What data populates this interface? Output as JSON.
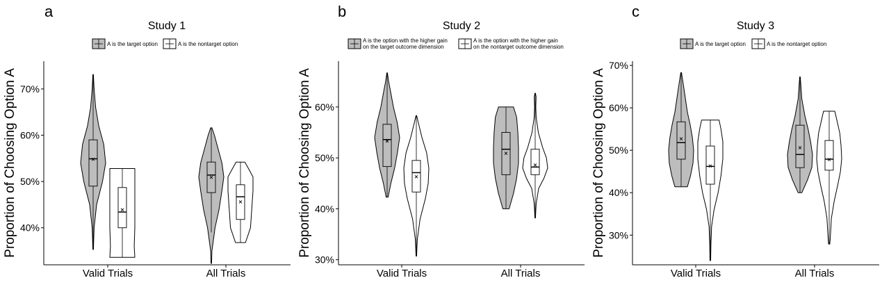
{
  "figure": {
    "colors": {
      "target_fill": "#bdbdbd",
      "nontarget_fill": "#ffffff",
      "stroke": "#000000"
    }
  },
  "chart_data": [
    {
      "type": "violin",
      "panel_letter": "a",
      "title": "Study 1",
      "ylabel": "Proportion of Choosing Option A",
      "categories": [
        "Valid Trials",
        "All Trials"
      ],
      "y_ticks": [
        "40%",
        "50%",
        "60%",
        "70%"
      ],
      "y_tick_values": [
        40,
        50,
        60,
        70
      ],
      "ylim": [
        32,
        76
      ],
      "grid": false,
      "legend_placement": "top",
      "series": [
        {
          "name": "A is the target option",
          "legend_lines": [
            "A is the target option"
          ],
          "fill": "#bdbdbd",
          "groups": [
            {
              "category": "Valid Trials",
              "min": 35.3,
              "max": 73.1,
              "q1": 49.0,
              "median": 54.9,
              "q3": 59.0,
              "mean": 54.8,
              "lower_whisker": 35.3,
              "upper_whisker": 73.1,
              "density": [
                [
                  35.3,
                  0.02
                ],
                [
                  40,
                  0.08
                ],
                [
                  45,
                  0.28
                ],
                [
                  50,
                  0.75
                ],
                [
                  54,
                  1.0
                ],
                [
                  58,
                  0.85
                ],
                [
                  62,
                  0.45
                ],
                [
                  66,
                  0.2
                ],
                [
                  70,
                  0.08
                ],
                [
                  73.1,
                  0.02
                ]
              ]
            },
            {
              "category": "All Trials",
              "min": 32.3,
              "max": 61.6,
              "q1": 47.6,
              "median": 51.4,
              "q3": 54.2,
              "mean": 50.9,
              "lower_whisker": 39.0,
              "upper_whisker": 61.6,
              "density": [
                [
                  32.3,
                  0.02
                ],
                [
                  35,
                  0.05
                ],
                [
                  40,
                  0.3
                ],
                [
                  44,
                  0.62
                ],
                [
                  48,
                  0.85
                ],
                [
                  51,
                  1.0
                ],
                [
                  54,
                  0.85
                ],
                [
                  57,
                  0.55
                ],
                [
                  60,
                  0.25
                ],
                [
                  61.6,
                  0.05
                ]
              ]
            }
          ]
        },
        {
          "name": "A is the nontarget option",
          "legend_lines": [
            "A is the nontarget option"
          ],
          "fill": "#ffffff",
          "groups": [
            {
              "category": "Valid Trials",
              "min": 33.6,
              "max": 52.8,
              "q1": 40.0,
              "median": 43.4,
              "q3": 48.7,
              "mean": 43.9,
              "lower_whisker": 33.6,
              "upper_whisker": 52.8,
              "density": [
                [
                  33.6,
                  1.0
                ],
                [
                  36,
                  0.95
                ],
                [
                  40,
                  1.0
                ],
                [
                  44,
                  1.0
                ],
                [
                  48,
                  1.0
                ],
                [
                  51,
                  1.0
                ],
                [
                  52.8,
                  1.0
                ]
              ]
            },
            {
              "category": "All Trials",
              "min": 36.8,
              "max": 54.2,
              "q1": 41.8,
              "median": 46.7,
              "q3": 49.3,
              "mean": 45.6,
              "lower_whisker": 36.8,
              "upper_whisker": 54.2,
              "density": [
                [
                  36.8,
                  0.4
                ],
                [
                  40,
                  0.8
                ],
                [
                  44,
                  0.9
                ],
                [
                  48,
                  1.0
                ],
                [
                  51,
                  1.0
                ],
                [
                  53,
                  0.6
                ],
                [
                  54.2,
                  0.35
                ]
              ]
            }
          ]
        }
      ]
    },
    {
      "type": "violin",
      "panel_letter": "b",
      "title": "Study 2",
      "ylabel": "Proportion of Choosing Option A",
      "categories": [
        "Valid Trials",
        "All Trials"
      ],
      "y_ticks": [
        "30%",
        "40%",
        "50%",
        "60%"
      ],
      "y_tick_values": [
        30,
        40,
        50,
        60
      ],
      "ylim": [
        29,
        69
      ],
      "grid": false,
      "legend_placement": "top",
      "series": [
        {
          "name": "A is the option with the higher gain on the target outcome dimension",
          "legend_lines": [
            "A is the option with the higher gain",
            "on the target outcome dimension"
          ],
          "fill": "#bdbdbd",
          "groups": [
            {
              "category": "Valid Trials",
              "min": 42.3,
              "max": 66.7,
              "q1": 48.3,
              "median": 53.6,
              "q3": 56.6,
              "mean": 53.3,
              "lower_whisker": 42.3,
              "upper_whisker": 66.7,
              "density": [
                [
                  42.3,
                  0.08
                ],
                [
                  45,
                  0.3
                ],
                [
                  48,
                  0.6
                ],
                [
                  51,
                  0.82
                ],
                [
                  54,
                  1.0
                ],
                [
                  57,
                  0.8
                ],
                [
                  60,
                  0.5
                ],
                [
                  63,
                  0.28
                ],
                [
                  65,
                  0.12
                ],
                [
                  66.7,
                  0.02
                ]
              ]
            },
            {
              "category": "All Trials",
              "min": 40.0,
              "max": 60.0,
              "q1": 46.7,
              "median": 51.7,
              "q3": 55.0,
              "mean": 50.9,
              "lower_whisker": 40.0,
              "upper_whisker": 60.0,
              "density": [
                [
                  40,
                  0.25
                ],
                [
                  43,
                  0.6
                ],
                [
                  46,
                  0.85
                ],
                [
                  49,
                  1.0
                ],
                [
                  52,
                  1.0
                ],
                [
                  55,
                  0.95
                ],
                [
                  58,
                  0.85
                ],
                [
                  60,
                  0.6
                ]
              ]
            }
          ]
        },
        {
          "name": "A is the option with the higher gain on the nontarget outcome dimension",
          "legend_lines": [
            "A is the option with the higher gain",
            "on the nontarget outcome dimension"
          ],
          "fill": "#ffffff",
          "groups": [
            {
              "category": "Valid Trials",
              "min": 30.7,
              "max": 58.3,
              "q1": 43.3,
              "median": 47.1,
              "q3": 49.5,
              "mean": 46.3,
              "lower_whisker": 30.7,
              "upper_whisker": 58.3,
              "density": [
                [
                  30.7,
                  0.02
                ],
                [
                  34,
                  0.08
                ],
                [
                  38,
                  0.3
                ],
                [
                  42,
                  0.72
                ],
                [
                  45,
                  0.95
                ],
                [
                  48,
                  1.0
                ],
                [
                  51,
                  0.82
                ],
                [
                  54,
                  0.45
                ],
                [
                  57,
                  0.15
                ],
                [
                  58.3,
                  0.03
                ]
              ]
            },
            {
              "category": "All Trials",
              "min": 38.2,
              "max": 62.7,
              "q1": 46.7,
              "median": 48.2,
              "q3": 51.7,
              "mean": 48.6,
              "lower_whisker": 38.2,
              "upper_whisker": 62.7,
              "density": [
                [
                  38.2,
                  0.02
                ],
                [
                  41,
                  0.08
                ],
                [
                  44,
                  0.28
                ],
                [
                  46,
                  0.7
                ],
                [
                  48,
                  1.0
                ],
                [
                  50,
                  0.9
                ],
                [
                  52,
                  0.6
                ],
                [
                  55,
                  0.25
                ],
                [
                  58,
                  0.08
                ],
                [
                  60,
                  0.05
                ],
                [
                  62,
                  0.07
                ],
                [
                  62.7,
                  0.02
                ]
              ]
            }
          ]
        }
      ]
    },
    {
      "type": "violin",
      "panel_letter": "c",
      "title": "Study 3",
      "ylabel": "Proportion of Choosing Option A",
      "categories": [
        "Valid Trials",
        "All Trials"
      ],
      "y_ticks": [
        "30%",
        "40%",
        "50%",
        "60%",
        "70%"
      ],
      "y_tick_values": [
        30,
        40,
        50,
        60,
        70
      ],
      "ylim": [
        23,
        71
      ],
      "grid": false,
      "legend_placement": "top",
      "series": [
        {
          "name": "A is the target option",
          "legend_lines": [
            "A is the target option"
          ],
          "fill": "#bdbdbd",
          "groups": [
            {
              "category": "Valid Trials",
              "min": 41.4,
              "max": 68.3,
              "q1": 47.9,
              "median": 51.8,
              "q3": 56.7,
              "mean": 52.7,
              "lower_whisker": 41.4,
              "upper_whisker": 68.3,
              "density": [
                [
                  41.4,
                  0.5
                ],
                [
                  44,
                  0.75
                ],
                [
                  47,
                  0.95
                ],
                [
                  50,
                  1.0
                ],
                [
                  53,
                  0.9
                ],
                [
                  56,
                  0.72
                ],
                [
                  59,
                  0.5
                ],
                [
                  62,
                  0.35
                ],
                [
                  65,
                  0.2
                ],
                [
                  68.3,
                  0.03
                ]
              ]
            },
            {
              "category": "All Trials",
              "min": 40.0,
              "max": 67.3,
              "q1": 45.9,
              "median": 49.0,
              "q3": 55.9,
              "mean": 50.6,
              "lower_whisker": 40.0,
              "upper_whisker": 67.3,
              "density": [
                [
                  40,
                  0.15
                ],
                [
                  43,
                  0.6
                ],
                [
                  46,
                  0.95
                ],
                [
                  49,
                  1.0
                ],
                [
                  52,
                  0.85
                ],
                [
                  55,
                  0.65
                ],
                [
                  58,
                  0.4
                ],
                [
                  62,
                  0.15
                ],
                [
                  65,
                  0.08
                ],
                [
                  67.3,
                  0.02
                ]
              ]
            }
          ]
        },
        {
          "name": "A is the nontarget option",
          "legend_lines": [
            "A is the nontarget option"
          ],
          "fill": "#ffffff",
          "groups": [
            {
              "category": "Valid Trials",
              "min": 24.0,
              "max": 57.1,
              "q1": 42.0,
              "median": 46.2,
              "q3": 51.0,
              "mean": 46.3,
              "lower_whisker": 24.0,
              "upper_whisker": 57.1,
              "density": [
                [
                  24,
                  0.03
                ],
                [
                  28,
                  0.05
                ],
                [
                  32,
                  0.1
                ],
                [
                  36,
                  0.3
                ],
                [
                  40,
                  0.62
                ],
                [
                  44,
                  0.85
                ],
                [
                  48,
                  1.0
                ],
                [
                  52,
                  1.0
                ],
                [
                  55,
                  0.85
                ],
                [
                  57.1,
                  0.7
                ]
              ]
            },
            {
              "category": "All Trials",
              "min": 27.9,
              "max": 59.2,
              "q1": 45.3,
              "median": 47.9,
              "q3": 52.3,
              "mean": 47.8,
              "lower_whisker": 27.9,
              "upper_whisker": 59.2,
              "density": [
                [
                  27.9,
                  0.05
                ],
                [
                  30,
                  0.1
                ],
                [
                  34,
                  0.18
                ],
                [
                  38,
                  0.4
                ],
                [
                  42,
                  0.7
                ],
                [
                  45,
                  0.9
                ],
                [
                  48,
                  1.0
                ],
                [
                  51,
                  0.95
                ],
                [
                  54,
                  0.85
                ],
                [
                  57,
                  0.62
                ],
                [
                  59.2,
                  0.45
                ]
              ]
            }
          ]
        }
      ]
    }
  ]
}
